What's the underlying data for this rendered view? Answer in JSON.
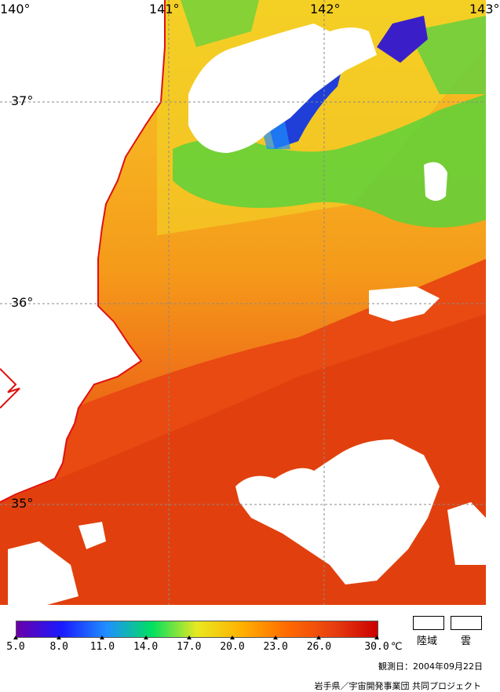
{
  "map": {
    "longitude_labels": [
      "140°",
      "141°",
      "142°",
      "143°"
    ],
    "latitude_labels": [
      "37°",
      "36°",
      "35°"
    ]
  },
  "legend": {
    "tick_labels": [
      "5.0",
      "8.0",
      "11.0",
      "14.0",
      "17.0",
      "20.0",
      "23.0",
      "26.0",
      "30.0"
    ],
    "unit": "℃",
    "colors": [
      "#6a00a8",
      "#1a1aff",
      "#1f8fff",
      "#00e060",
      "#e8e820",
      "#ffb000",
      "#ff6a00",
      "#e84010",
      "#cc0000"
    ],
    "land_label": "陸域",
    "cloud_label": "雲",
    "observation": "観測日：2004年09月22日",
    "credit": "岩手県／宇宙開発事業団 共同プロジェクト"
  }
}
